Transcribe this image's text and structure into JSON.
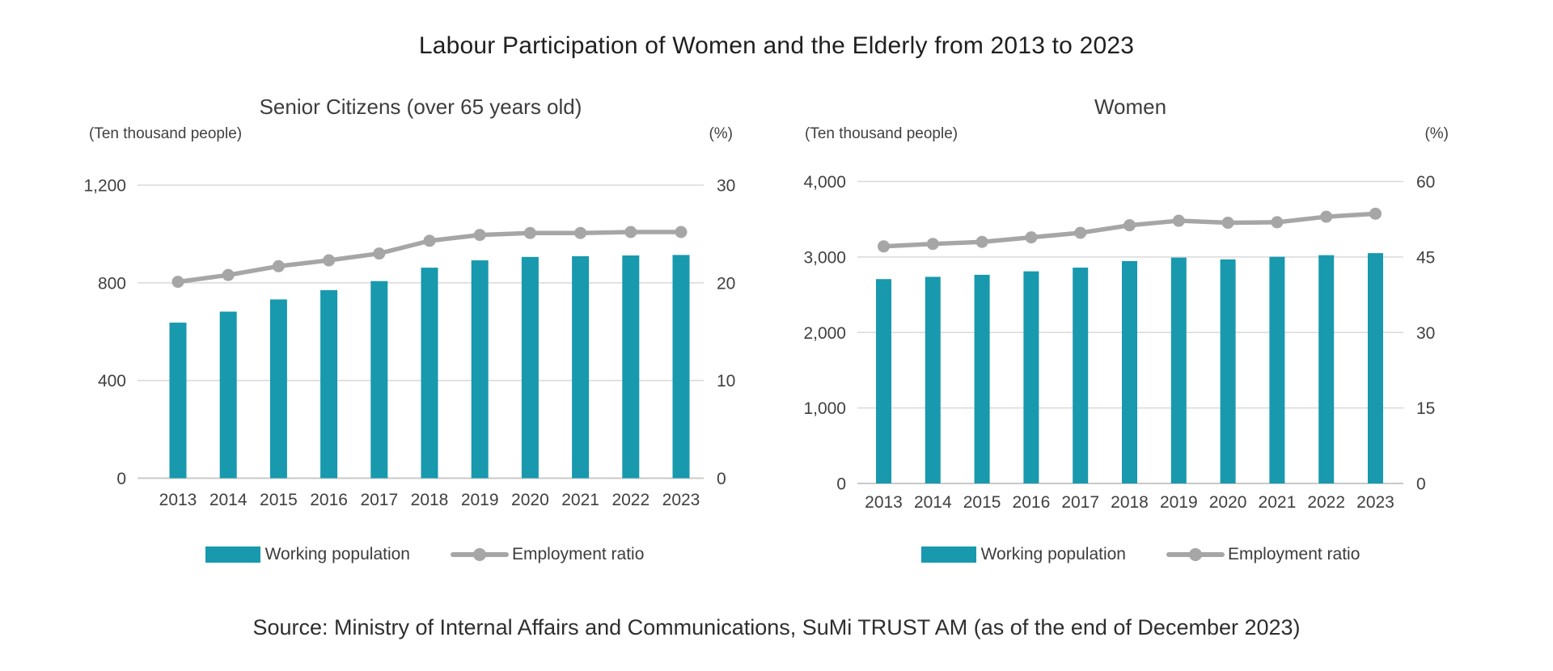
{
  "main": {
    "title": "Labour Participation of Women and the Elderly from 2013 to 2023"
  },
  "source": "Source: Ministry of Internal Affairs and Communications, SuMi TRUST AM (as of the end of December 2023)",
  "colors": {
    "bar": "#1899AE",
    "line": "#A6A6A6",
    "gridline": "#D9D9D9",
    "baseline": "#C9C9C9",
    "text": "#404040"
  },
  "chart_data": [
    {
      "type": "bar+line",
      "title": "Senior Citizens (over 65 years old)",
      "unit_left": "(Ten thousand people)",
      "unit_right": "(%)",
      "categories": [
        "2013",
        "2014",
        "2015",
        "2016",
        "2017",
        "2018",
        "2019",
        "2020",
        "2021",
        "2022",
        "2023"
      ],
      "series": [
        {
          "name": "Working population",
          "type": "bar",
          "axis": "left",
          "values": [
            637,
            682,
            732,
            770,
            807,
            862,
            892,
            906,
            909,
            912,
            914
          ]
        },
        {
          "name": "Employment ratio",
          "type": "line",
          "axis": "right",
          "values": [
            20.1,
            20.8,
            21.7,
            22.3,
            23.0,
            24.3,
            24.9,
            25.1,
            25.1,
            25.2,
            25.2
          ]
        }
      ],
      "left_axis": {
        "min": 0,
        "max": 1200,
        "ticks": [
          0,
          400,
          800,
          1200
        ]
      },
      "right_axis": {
        "min": 0,
        "max": 30,
        "ticks": [
          0,
          10,
          20,
          30
        ]
      },
      "grid": true,
      "legend_position": "bottom"
    },
    {
      "type": "bar+line",
      "title": "Women",
      "unit_left": "(Ten thousand people)",
      "unit_right": "(%)",
      "categories": [
        "2013",
        "2014",
        "2015",
        "2016",
        "2017",
        "2018",
        "2019",
        "2020",
        "2021",
        "2022",
        "2023"
      ],
      "series": [
        {
          "name": "Working population",
          "type": "bar",
          "axis": "left",
          "values": [
            2707,
            2737,
            2764,
            2810,
            2859,
            2946,
            2992,
            2968,
            3002,
            3024,
            3051
          ]
        },
        {
          "name": "Employment ratio",
          "type": "line",
          "axis": "right",
          "values": [
            47.1,
            47.6,
            48.0,
            48.9,
            49.8,
            51.3,
            52.2,
            51.8,
            51.9,
            53.0,
            53.6
          ]
        }
      ],
      "left_axis": {
        "min": 0,
        "max": 4000,
        "ticks": [
          0,
          1000,
          2000,
          3000,
          4000
        ]
      },
      "right_axis": {
        "min": 0,
        "max": 60,
        "ticks": [
          0,
          15,
          30,
          45,
          60
        ]
      },
      "grid": true,
      "legend_position": "bottom"
    }
  ]
}
